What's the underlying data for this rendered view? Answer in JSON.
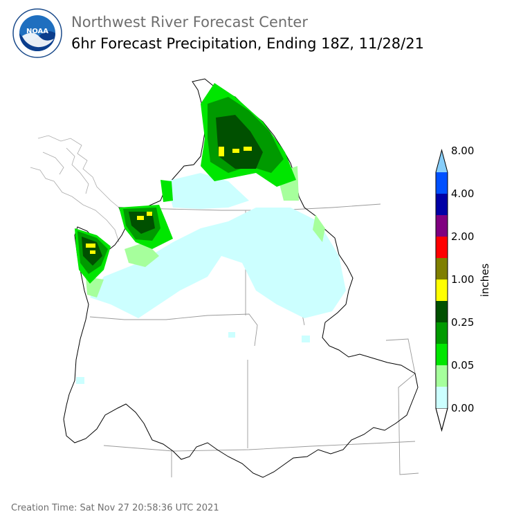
{
  "header": {
    "title": "Northwest River Forecast Center",
    "subtitle": "6hr Forecast Precipitation, Ending 18Z, 11/28/21"
  },
  "logo": {
    "text": "NOAA",
    "ring_text": "NATIONAL OCEANIC AND ATMOSPHERIC ADMINISTRATION · U.S. DEPARTMENT OF COMMERCE"
  },
  "legend": {
    "unit_label": "inches",
    "tick_labels": [
      "0.00",
      "0.05",
      "0.25",
      "1.00",
      "2.00",
      "4.00",
      "8.00"
    ],
    "colors": [
      "#ffffff",
      "#ccffff",
      "#a6ff9c",
      "#00e600",
      "#009a00",
      "#005000",
      "#ffff00",
      "#7f7f00",
      "#ff0000",
      "#800080",
      "#0000a6",
      "#0050ff",
      "#87cefa"
    ]
  },
  "footer": {
    "creation_time": "Creation Time: Sat Nov 27 20:58:36 UTC 2021"
  }
}
